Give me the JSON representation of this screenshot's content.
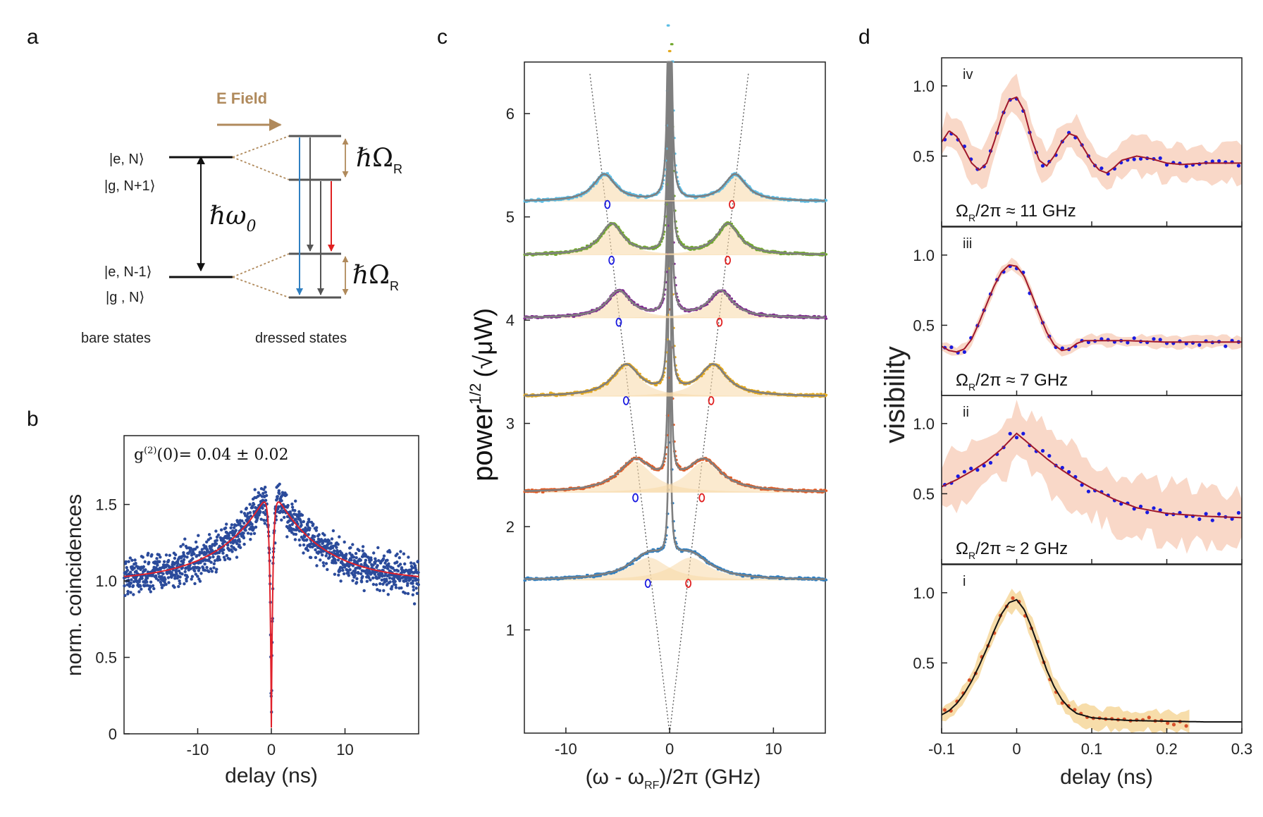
{
  "panels": {
    "a": {
      "label": "a",
      "efield_label": "E Field",
      "ket_e_N": "|e, N⟩",
      "ket_g_N1": "|g, N+1⟩",
      "ket_e_Nm1": "|e, N-1⟩",
      "ket_g_N": "|g , N⟩",
      "hbar_omega0": "ℏω",
      "omega0_sub": "0",
      "hbar_OmegaR_top": "ℏΩ",
      "hbar_OmegaR_bottom": "ℏΩ",
      "omegaR_sub": "R",
      "bare_states": "bare states",
      "dressed_states": "dressed states"
    },
    "b": {
      "label": "b",
      "annotation": "g(2)(0)= 0.04 ± 0.02",
      "annotation_g": "g",
      "annotation_sup": "(2)",
      "annotation_rest": "(0)= 0.04 ± 0.02",
      "ylabel": "norm. coincidences",
      "xlabel": "delay (ns)"
    },
    "c": {
      "label": "c",
      "ylabel": "power1/2 (√μW)",
      "ylabel_main": "power",
      "ylabel_sup": "1/2",
      "ylabel_unit": "(√μW)",
      "xlabel": "(ω - ωRF)/2π (GHz)",
      "xlabel_a": "(ω - ω",
      "xlabel_sub": "RF",
      "xlabel_b": ")/2π (GHz)"
    },
    "d": {
      "label": "d",
      "ylabel": "visibility",
      "xlabel": "delay (ns)",
      "subpanels": [
        {
          "roman": "iv",
          "caption": "ΩR/2π ≈ 11 GHz",
          "cap_a": "Ω",
          "cap_sub": "R",
          "cap_b": "/2π ≈ 11 GHz"
        },
        {
          "roman": "iii",
          "caption": "ΩR/2π ≈ 7 GHz",
          "cap_a": "Ω",
          "cap_sub": "R",
          "cap_b": "/2π ≈ 7 GHz"
        },
        {
          "roman": "ii",
          "caption": "ΩR/2π ≈ 2 GHz",
          "cap_a": "Ω",
          "cap_sub": "R",
          "cap_b": "/2π ≈ 2 GHz"
        },
        {
          "roman": "i",
          "caption": "",
          "cap_a": "",
          "cap_sub": "",
          "cap_b": ""
        }
      ]
    }
  },
  "chart_data": [
    {
      "id": "b",
      "type": "scatter",
      "title": "",
      "xlabel": "delay (ns)",
      "ylabel": "norm. coincidences",
      "xlim": [
        -20,
        20
      ],
      "ylim": [
        0,
        1.95
      ],
      "xticks": [
        "-10",
        "0",
        "10"
      ],
      "xtick_values": [
        -10,
        0,
        10
      ],
      "yticks": [
        "0",
        "0.5",
        "1.0",
        "1.5"
      ],
      "ytick_values": [
        0,
        0.5,
        1.0,
        1.5
      ],
      "colors": {
        "data": "#2b4b9b",
        "fit": "#e0202a"
      },
      "fit_model": {
        "baseline": 1.0,
        "bunch_amp": 0.62,
        "bunch_tau_ns": 6.5,
        "dip_tau_ns": 0.22,
        "g2_zero": 0.04
      },
      "series": [
        {
          "name": "fit",
          "x": [
            -20,
            -16,
            -12,
            -8,
            -6,
            -4,
            -3,
            -2,
            -1.5,
            -1,
            -0.7,
            -0.5,
            -0.3,
            -0.15,
            0,
            0.15,
            0.3,
            0.5,
            0.7,
            1,
            1.5,
            2,
            3,
            4,
            6,
            8,
            12,
            16,
            20
          ],
          "y": [
            1.03,
            1.05,
            1.1,
            1.18,
            1.25,
            1.34,
            1.39,
            1.45,
            1.49,
            1.52,
            1.55,
            1.5,
            1.19,
            0.66,
            0.04,
            0.66,
            1.19,
            1.5,
            1.55,
            1.52,
            1.49,
            1.45,
            1.39,
            1.34,
            1.25,
            1.18,
            1.1,
            1.05,
            1.03
          ]
        }
      ]
    },
    {
      "id": "c",
      "type": "line",
      "xlabel": "(ω - ωRF)/2π (GHz)",
      "ylabel": "power1/2 (√μW)",
      "xlim": [
        -14,
        15
      ],
      "ylim": [
        0,
        6.5
      ],
      "xticks": [
        "-10",
        "0",
        "10"
      ],
      "xtick_values": [
        -10,
        0,
        10
      ],
      "yticks": [
        "1",
        "2",
        "3",
        "4",
        "5",
        "6"
      ],
      "ytick_values": [
        1,
        2,
        3,
        4,
        5,
        6
      ],
      "guide_lines": {
        "color": "#555555",
        "style": "dotted",
        "left_end": [
          -7.7,
          6.4
        ],
        "right_end": [
          7.6,
          6.4
        ],
        "origin": [
          0,
          0
        ]
      },
      "spectra": [
        {
          "color": "#2f7fc1",
          "baseline": 1.48,
          "omegaR": 2.0,
          "side_amp": 0.22,
          "side_width": 4.5,
          "center_amp": 0.6,
          "markers_y": 1.45,
          "marker_left_x": -2.1,
          "marker_right_x": 1.8
        },
        {
          "color": "#e15b24",
          "baseline": 2.33,
          "omegaR": 3.3,
          "side_amp": 0.3,
          "side_width": 4.0,
          "center_amp": 0.9,
          "markers_y": 2.28,
          "marker_left_x": -3.3,
          "marker_right_x": 3.1
        },
        {
          "color": "#e4a91e",
          "baseline": 3.26,
          "omegaR": 4.2,
          "side_amp": 0.3,
          "side_width": 3.2,
          "center_amp": 1.1,
          "markers_y": 3.22,
          "marker_left_x": -4.2,
          "marker_right_x": 4.0
        },
        {
          "color": "#7e2a8e",
          "baseline": 4.02,
          "omegaR": 4.9,
          "side_amp": 0.26,
          "side_width": 2.8,
          "center_amp": 1.3,
          "markers_y": 3.98,
          "marker_left_x": -4.9,
          "marker_right_x": 4.8
        },
        {
          "color": "#72a82e",
          "baseline": 4.63,
          "omegaR": 5.6,
          "side_amp": 0.3,
          "side_width": 2.7,
          "center_amp": 1.45,
          "markers_y": 4.58,
          "marker_left_x": -5.6,
          "marker_right_x": 5.6
        },
        {
          "color": "#5bbde5",
          "baseline": 5.15,
          "omegaR": 6.3,
          "side_amp": 0.26,
          "side_width": 2.6,
          "center_amp": 1.6,
          "markers_y": 5.12,
          "marker_left_x": -6.0,
          "marker_right_x": 6.0
        }
      ],
      "fit_color": "#7f7f7f",
      "lorentz_fill": "#f7d9a8",
      "marker_colors": {
        "left": "#1a1ae0",
        "right": "#e02020"
      }
    },
    {
      "id": "d",
      "type": "line",
      "xlabel": "delay (ns)",
      "ylabel": "visibility",
      "xlim": [
        -0.1,
        0.3
      ],
      "ylim": [
        0,
        1.2
      ],
      "xticks": [
        "-0.1",
        "0",
        "0.1",
        "0.2",
        "0.3"
      ],
      "xtick_values": [
        -0.1,
        0,
        0.1,
        0.2,
        0.3
      ],
      "subplots": [
        {
          "roman": "iv",
          "yticks": [
            "0.5",
            "1.0"
          ],
          "ytick_values": [
            0.5,
            1.0
          ],
          "fit_color": "#a0182a",
          "data_color": "#1a1ae0",
          "band_color": "#f7c8b0",
          "fit": {
            "x": [
              -0.1,
              -0.09,
              -0.08,
              -0.07,
              -0.06,
              -0.05,
              -0.04,
              -0.03,
              -0.02,
              -0.01,
              0,
              0.01,
              0.02,
              0.03,
              0.04,
              0.05,
              0.06,
              0.07,
              0.08,
              0.09,
              0.1,
              0.11,
              0.12,
              0.13,
              0.14,
              0.16,
              0.18,
              0.2,
              0.22,
              0.25,
              0.3
            ],
            "y": [
              0.6,
              0.68,
              0.64,
              0.55,
              0.45,
              0.4,
              0.45,
              0.6,
              0.78,
              0.9,
              0.92,
              0.82,
              0.62,
              0.47,
              0.43,
              0.5,
              0.6,
              0.66,
              0.64,
              0.55,
              0.46,
              0.4,
              0.38,
              0.42,
              0.47,
              0.5,
              0.48,
              0.45,
              0.44,
              0.45,
              0.45
            ]
          }
        },
        {
          "roman": "iii",
          "yticks": [
            "0.5",
            "1.0"
          ],
          "ytick_values": [
            0.5,
            1.0
          ],
          "fit_color": "#a0182a",
          "data_color": "#1a1ae0",
          "band_color": "#f7c8b0",
          "fit": {
            "x": [
              -0.1,
              -0.09,
              -0.08,
              -0.07,
              -0.06,
              -0.05,
              -0.04,
              -0.03,
              -0.02,
              -0.01,
              0,
              0.01,
              0.02,
              0.03,
              0.04,
              0.05,
              0.06,
              0.07,
              0.08,
              0.09,
              0.1,
              0.12,
              0.15,
              0.2,
              0.25,
              0.3
            ],
            "y": [
              0.35,
              0.32,
              0.31,
              0.33,
              0.4,
              0.52,
              0.65,
              0.78,
              0.88,
              0.93,
              0.92,
              0.85,
              0.72,
              0.58,
              0.45,
              0.36,
              0.32,
              0.33,
              0.37,
              0.39,
              0.39,
              0.39,
              0.39,
              0.38,
              0.38,
              0.38
            ]
          }
        },
        {
          "roman": "ii",
          "yticks": [
            "0.5",
            "1.0"
          ],
          "ytick_values": [
            0.5,
            1.0
          ],
          "fit_color": "#a0182a",
          "data_color": "#1a1ae0",
          "band_color": "#f7c8b0",
          "fit": {
            "x": [
              -0.1,
              -0.08,
              -0.06,
              -0.04,
              -0.02,
              0,
              0.02,
              0.04,
              0.06,
              0.08,
              0.1,
              0.13,
              0.16,
              0.2,
              0.25,
              0.3
            ],
            "y": [
              0.55,
              0.6,
              0.66,
              0.73,
              0.82,
              0.93,
              0.84,
              0.75,
              0.67,
              0.6,
              0.54,
              0.46,
              0.4,
              0.36,
              0.34,
              0.33
            ]
          }
        },
        {
          "roman": "i",
          "yticks": [
            "0.5",
            "1.0"
          ],
          "ytick_values": [
            0.5,
            1.0
          ],
          "fit_color": "#111111",
          "data_color": "#d8502a",
          "band_color": "#f3cf86",
          "fit": {
            "x": [
              -0.1,
              -0.09,
              -0.08,
              -0.07,
              -0.06,
              -0.05,
              -0.04,
              -0.03,
              -0.02,
              -0.01,
              0,
              0.01,
              0.02,
              0.03,
              0.04,
              0.05,
              0.06,
              0.07,
              0.08,
              0.1,
              0.12,
              0.15,
              0.2,
              0.25,
              0.3
            ],
            "y": [
              0.13,
              0.16,
              0.21,
              0.28,
              0.37,
              0.48,
              0.6,
              0.73,
              0.85,
              0.93,
              0.95,
              0.88,
              0.75,
              0.6,
              0.45,
              0.33,
              0.24,
              0.18,
              0.14,
              0.11,
              0.1,
              0.09,
              0.085,
              0.08,
              0.08
            ]
          }
        }
      ]
    }
  ]
}
